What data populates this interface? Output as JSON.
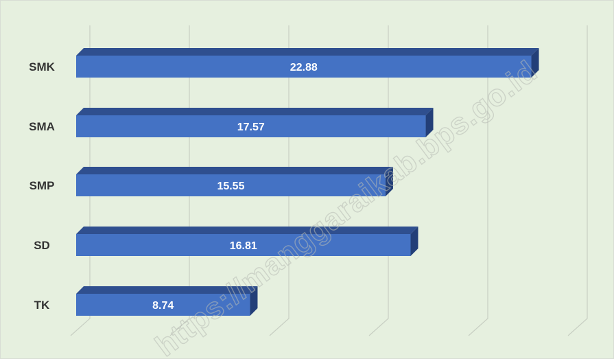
{
  "chart_data": {
    "type": "bar",
    "orientation": "horizontal",
    "style": "3d",
    "categories": [
      "SMK",
      "SMA",
      "SMP",
      "SD",
      "TK"
    ],
    "values": [
      22.88,
      17.57,
      15.55,
      16.81,
      8.74
    ],
    "xlim": [
      0,
      25
    ],
    "grid": true,
    "title": "",
    "xlabel": "",
    "ylabel": "",
    "colors": {
      "bar_front": "#4472c4",
      "bar_top": "#2f4f8f",
      "bar_side": "#233f78",
      "background": "#e6f0df",
      "gridline": "#c8cfc3"
    }
  },
  "watermark": "https://manggaraikab.bps.go.id"
}
